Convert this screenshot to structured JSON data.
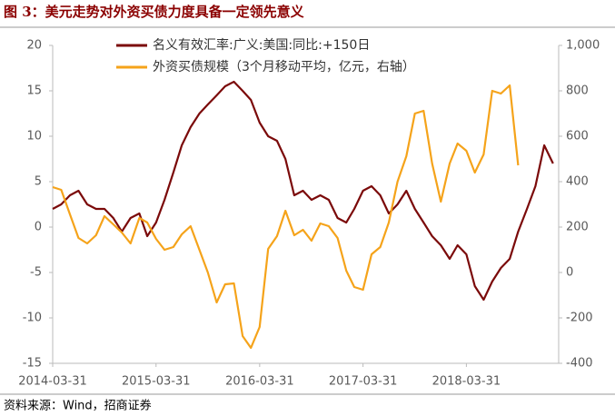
{
  "chart_data": {
    "type": "line",
    "title": "图 3：美元走势对外资买债力度具备一定领先意义",
    "source": "资料来源：Wind，招商证券",
    "xlim": [
      "2014-03-31",
      "2019-02-20"
    ],
    "xticks": [
      "2014-03-31",
      "2015-03-31",
      "2016-03-31",
      "2017-03-31",
      "2018-03-31"
    ],
    "ylim": [
      -15,
      20
    ],
    "yticks": [
      -15,
      -10,
      -5,
      0,
      5,
      10,
      15,
      20
    ],
    "y2lim": [
      -400,
      1000
    ],
    "y2ticks": [
      -400,
      -200,
      0,
      200,
      400,
      600,
      800,
      {
        "value": 1000,
        "label": "1,000"
      }
    ],
    "legend": "top",
    "series": [
      {
        "name": "名义有效汇率:广义:美国:同比:+150日",
        "color": "#7b0a0a",
        "x": [
          "2014-03",
          "2014-04",
          "2014-05",
          "2014-06",
          "2014-07",
          "2014-08",
          "2014-09",
          "2014-10",
          "2014-11",
          "2014-12",
          "2015-01",
          "2015-02",
          "2015-03",
          "2015-04",
          "2015-05",
          "2015-06",
          "2015-07",
          "2015-08",
          "2015-09",
          "2015-10",
          "2015-11",
          "2015-12",
          "2016-01",
          "2016-02",
          "2016-03",
          "2016-04",
          "2016-05",
          "2016-06",
          "2016-07",
          "2016-08",
          "2016-09",
          "2016-10",
          "2016-11",
          "2016-12",
          "2017-01",
          "2017-02",
          "2017-03",
          "2017-04",
          "2017-05",
          "2017-06",
          "2017-07",
          "2017-08",
          "2017-09",
          "2017-10",
          "2017-11",
          "2017-12",
          "2018-01",
          "2018-02",
          "2018-03",
          "2018-04",
          "2018-05",
          "2018-06",
          "2018-07",
          "2018-08",
          "2018-09",
          "2018-10",
          "2018-11",
          "2018-12",
          "2019-01"
        ],
        "values": [
          2,
          2.5,
          3.5,
          4,
          2.5,
          2,
          2,
          1,
          -0.5,
          1,
          1.5,
          -1,
          0.5,
          3,
          6,
          9,
          11,
          12.5,
          13.5,
          14.5,
          15.5,
          16,
          15,
          14,
          11.5,
          10,
          9.5,
          7.5,
          3.5,
          4,
          3,
          3.5,
          3,
          1,
          0.5,
          2,
          4,
          4.5,
          3.5,
          1.5,
          2.5,
          4,
          2,
          0.5,
          -1,
          -2,
          -3.5,
          -2,
          -3,
          -6.5,
          -8,
          -6,
          -4.5,
          -3.5,
          -0.5,
          2,
          4.5,
          9,
          7
        ]
      },
      {
        "name": "外资买债规模（3个月移动平均，亿元，右轴）",
        "color": "#f5a31a",
        "axis": "y2",
        "x": [
          "2014-03",
          "2014-04",
          "2014-05",
          "2014-06",
          "2014-07",
          "2014-08",
          "2014-09",
          "2014-10",
          "2014-11",
          "2014-12",
          "2015-01",
          "2015-02",
          "2015-03",
          "2015-04",
          "2015-05",
          "2015-06",
          "2015-07",
          "2015-08",
          "2015-09",
          "2015-10",
          "2015-11",
          "2015-12",
          "2016-01",
          "2016-02",
          "2016-03",
          "2016-04",
          "2016-05",
          "2016-06",
          "2016-07",
          "2016-08",
          "2016-09",
          "2016-10",
          "2016-11",
          "2016-12",
          "2017-01",
          "2017-02",
          "2017-03",
          "2017-04",
          "2017-05",
          "2017-06",
          "2017-07",
          "2017-08",
          "2017-09",
          "2017-10",
          "2017-11",
          "2017-12",
          "2018-01",
          "2018-02",
          "2018-03",
          "2018-04",
          "2018-05",
          "2018-06",
          "2018-07",
          "2018-08",
          "2018-09"
        ],
        "values": [
          376,
          364,
          256,
          152,
          128,
          164,
          248,
          212,
          176,
          128,
          240,
          220,
          148,
          100,
          112,
          168,
          204,
          100,
          0,
          -132,
          -52,
          -48,
          -280,
          -332,
          -240,
          104,
          160,
          272,
          164,
          188,
          140,
          216,
          204,
          152,
          8,
          -64,
          -76,
          80,
          112,
          220,
          400,
          512,
          700,
          712,
          480,
          312,
          480,
          568,
          536,
          440,
          520,
          800,
          788,
          824,
          472
        ]
      }
    ]
  }
}
